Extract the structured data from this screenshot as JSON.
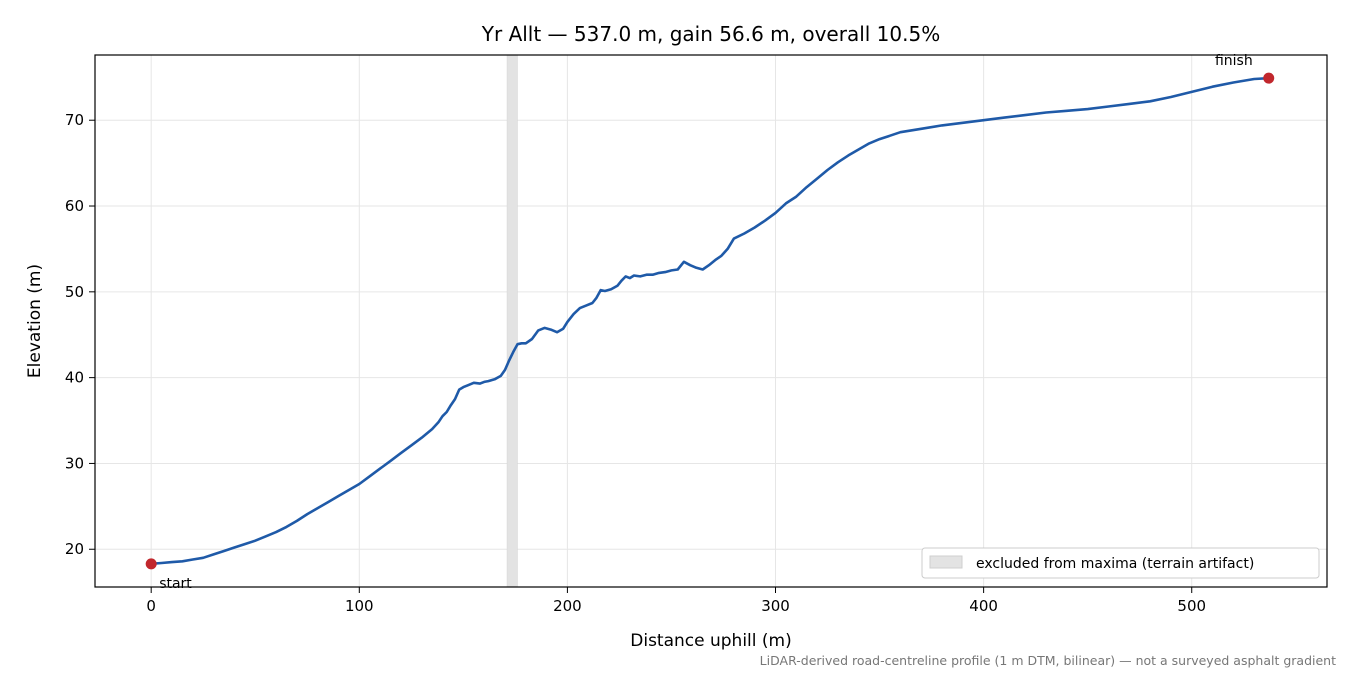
{
  "chart_data": {
    "type": "line",
    "title": "Yr Allt — 537.0 m, gain 56.6 m, overall 10.5%",
    "xlabel": "Distance uphill (m)",
    "ylabel": "Elevation (m)",
    "xlim": [
      -27,
      565
    ],
    "ylim": [
      15.6,
      77.6
    ],
    "xticks": [
      0,
      100,
      200,
      300,
      400,
      500
    ],
    "yticks": [
      20,
      30,
      40,
      50,
      60,
      70
    ],
    "grid": true,
    "series": [
      {
        "color": "#1f5aa8",
        "x": [
          0,
          5,
          10,
          15,
          20,
          25,
          30,
          35,
          40,
          45,
          50,
          55,
          60,
          65,
          70,
          75,
          80,
          85,
          90,
          95,
          100,
          105,
          110,
          115,
          120,
          125,
          130,
          135,
          138,
          140,
          142,
          144,
          146,
          148,
          150,
          152,
          155,
          158,
          160,
          162,
          165,
          168,
          170,
          172,
          174,
          176,
          178,
          180,
          183,
          186,
          189,
          192,
          195,
          198,
          200,
          203,
          206,
          209,
          212,
          214,
          216,
          218,
          221,
          224,
          226,
          228,
          230,
          232,
          235,
          238,
          241,
          244,
          247,
          250,
          253,
          256,
          259,
          262,
          265,
          268,
          271,
          274,
          277,
          280,
          285,
          290,
          295,
          300,
          305,
          310,
          315,
          320,
          325,
          330,
          335,
          340,
          345,
          350,
          355,
          360,
          370,
          380,
          390,
          400,
          410,
          420,
          430,
          440,
          450,
          460,
          470,
          480,
          490,
          500,
          510,
          520,
          530,
          537
        ],
        "y": [
          18.3,
          18.4,
          18.5,
          18.6,
          18.8,
          19.0,
          19.4,
          19.8,
          20.2,
          20.6,
          21.0,
          21.5,
          22.0,
          22.6,
          23.3,
          24.1,
          24.8,
          25.5,
          26.2,
          26.9,
          27.6,
          28.5,
          29.4,
          30.3,
          31.2,
          32.1,
          33.0,
          34.0,
          34.8,
          35.5,
          36.0,
          36.8,
          37.5,
          38.6,
          38.9,
          39.1,
          39.4,
          39.3,
          39.5,
          39.6,
          39.8,
          40.2,
          40.9,
          42.0,
          43.0,
          43.9,
          44.0,
          44.0,
          44.5,
          45.5,
          45.8,
          45.6,
          45.3,
          45.7,
          46.5,
          47.4,
          48.1,
          48.4,
          48.7,
          49.3,
          50.2,
          50.1,
          50.3,
          50.7,
          51.3,
          51.8,
          51.6,
          51.9,
          51.8,
          52.0,
          52.0,
          52.2,
          52.3,
          52.5,
          52.6,
          53.5,
          53.1,
          52.8,
          52.6,
          53.1,
          53.7,
          54.2,
          55.0,
          56.2,
          56.8,
          57.5,
          58.3,
          59.2,
          60.3,
          61.1,
          62.2,
          63.2,
          64.2,
          65.1,
          65.9,
          66.6,
          67.3,
          67.8,
          68.2,
          68.6,
          69.0,
          69.4,
          69.7,
          70.0,
          70.3,
          70.6,
          70.9,
          71.1,
          71.3,
          71.6,
          71.9,
          72.2,
          72.7,
          73.3,
          73.9,
          74.4,
          74.8,
          74.9
        ]
      }
    ],
    "excluded_band": {
      "x0": 171,
      "x1": 176,
      "color": "#e3e3e3"
    },
    "markers": [
      {
        "label": "start",
        "x": 0,
        "y": 18.3,
        "color": "#c1272d"
      },
      {
        "label": "finish",
        "x": 537,
        "y": 74.9,
        "color": "#c1272d"
      }
    ],
    "legend": {
      "placement": "lower right",
      "entry": "excluded from maxima (terrain artifact)"
    },
    "footnote": "LiDAR-derived road-centreline profile (1 m DTM, bilinear) — not a surveyed asphalt gradient"
  }
}
